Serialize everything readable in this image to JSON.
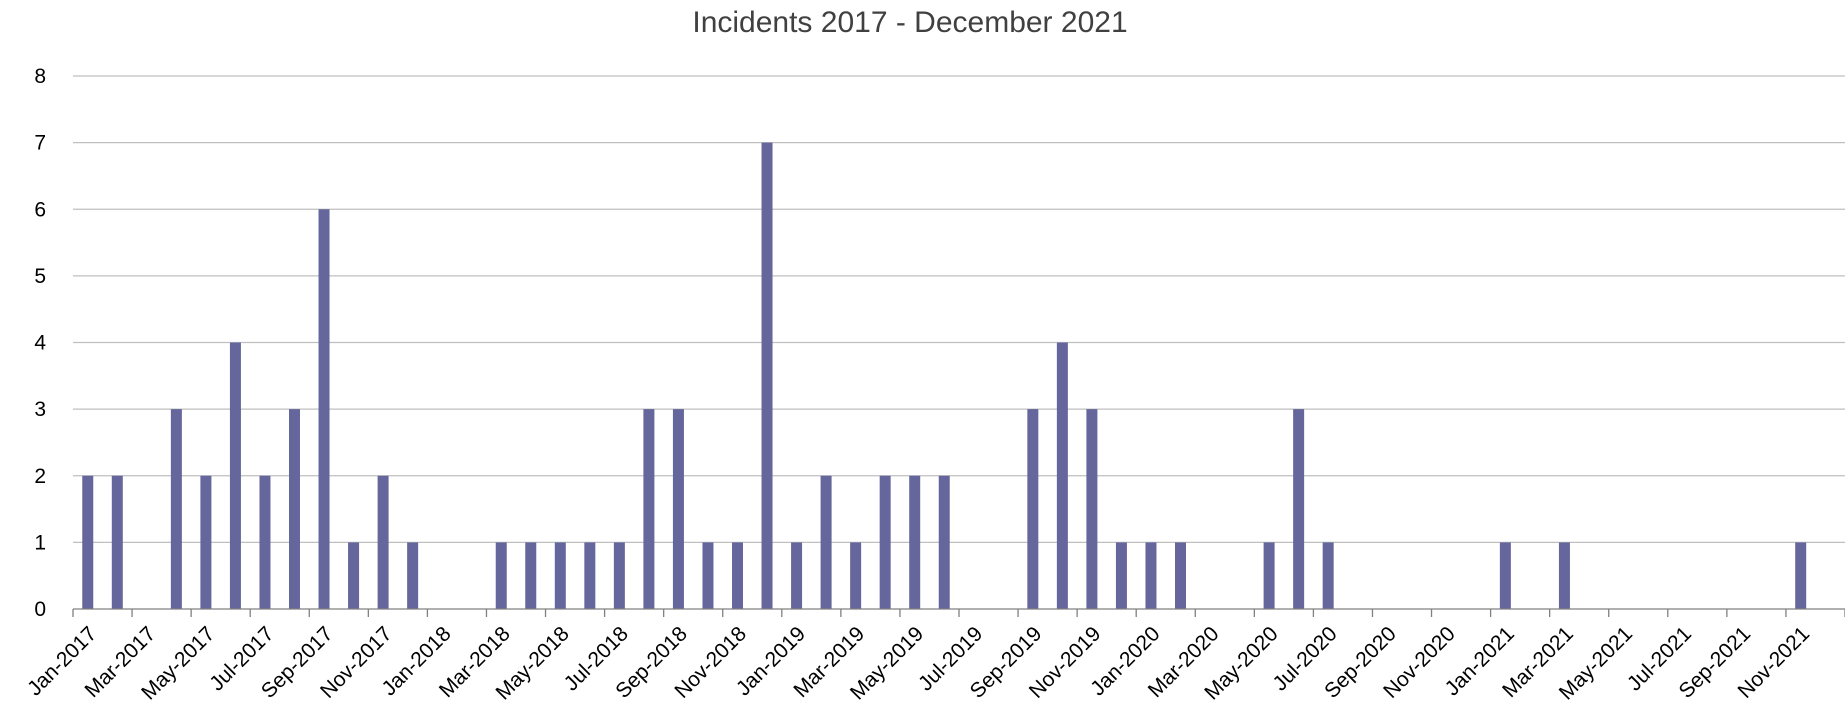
{
  "chart_data": {
    "type": "bar",
    "title": "Incidents 2017 - December 2021",
    "xlabel": "",
    "ylabel": "",
    "ylim": [
      0,
      8
    ],
    "yticks": [
      0,
      1,
      2,
      3,
      4,
      5,
      6,
      7,
      8
    ],
    "grid": true,
    "legend": "none",
    "bar_color": "#65669c",
    "categories": [
      "Jan-2017",
      "Feb-2017",
      "Mar-2017",
      "Apr-2017",
      "May-2017",
      "Jun-2017",
      "Jul-2017",
      "Aug-2017",
      "Sep-2017",
      "Oct-2017",
      "Nov-2017",
      "Dec-2017",
      "Jan-2018",
      "Feb-2018",
      "Mar-2018",
      "Apr-2018",
      "May-2018",
      "Jun-2018",
      "Jul-2018",
      "Aug-2018",
      "Sep-2018",
      "Oct-2018",
      "Nov-2018",
      "Dec-2018",
      "Jan-2019",
      "Feb-2019",
      "Mar-2019",
      "Apr-2019",
      "May-2019",
      "Jun-2019",
      "Jul-2019",
      "Aug-2019",
      "Sep-2019",
      "Oct-2019",
      "Nov-2019",
      "Dec-2019",
      "Jan-2020",
      "Feb-2020",
      "Mar-2020",
      "Apr-2020",
      "May-2020",
      "Jun-2020",
      "Jul-2020",
      "Aug-2020",
      "Sep-2020",
      "Oct-2020",
      "Nov-2020",
      "Dec-2020",
      "Jan-2021",
      "Feb-2021",
      "Mar-2021",
      "Apr-2021",
      "May-2021",
      "Jun-2021",
      "Jul-2021",
      "Aug-2021",
      "Sep-2021",
      "Oct-2021",
      "Nov-2021",
      "Dec-2021"
    ],
    "values": [
      2,
      2,
      0,
      3,
      2,
      4,
      2,
      3,
      6,
      1,
      2,
      1,
      0,
      0,
      1,
      1,
      1,
      1,
      1,
      3,
      3,
      1,
      1,
      7,
      1,
      2,
      1,
      2,
      2,
      2,
      0,
      0,
      3,
      4,
      3,
      1,
      1,
      1,
      0,
      0,
      1,
      3,
      1,
      0,
      0,
      0,
      0,
      0,
      1,
      0,
      1,
      0,
      0,
      0,
      0,
      0,
      0,
      0,
      1,
      0
    ],
    "x_tick_labels": [
      "Jan-2017",
      "Mar-2017",
      "May-2017",
      "Jul-2017",
      "Sep-2017",
      "Nov-2017",
      "Jan-2018",
      "Mar-2018",
      "May-2018",
      "Jul-2018",
      "Sep-2018",
      "Nov-2018",
      "Jan-2019",
      "Mar-2019",
      "May-2019",
      "Jul-2019",
      "Sep-2019",
      "Nov-2019",
      "Jan-2020",
      "Mar-2020",
      "May-2020",
      "Jul-2020",
      "Sep-2020",
      "Nov-2020",
      "Jan-2021",
      "Mar-2021",
      "May-2021",
      "Jul-2021",
      "Sep-2021",
      "Nov-2021"
    ]
  }
}
